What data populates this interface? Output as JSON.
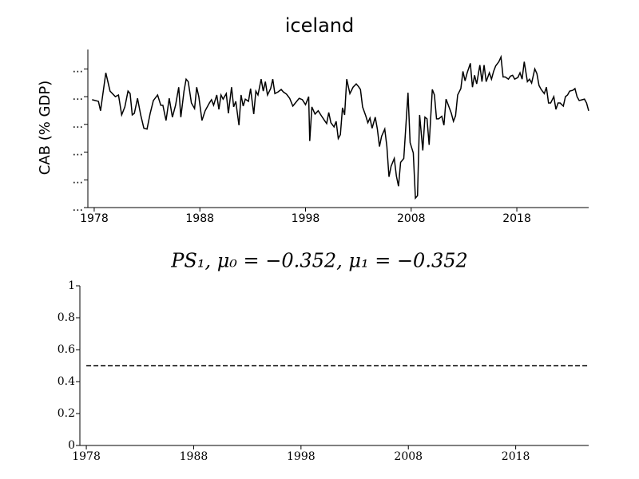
{
  "chart_data": [
    {
      "type": "line",
      "title": "iceland",
      "ylabel": "CAB (% GDP)",
      "xlim": [
        1977.4,
        2024.8
      ],
      "xticks": [
        1978,
        1988,
        1998,
        2008,
        2018
      ],
      "ylim": [
        -40,
        17
      ],
      "yticks": [
        {
          "value": 10,
          "label": "..."
        },
        {
          "value": 0,
          "label": "..."
        },
        {
          "value": -10,
          "label": "..."
        },
        {
          "value": -20,
          "label": "..."
        },
        {
          "value": -30,
          "label": "..."
        },
        {
          "value": -40,
          "label": "..."
        }
      ],
      "series": [
        {
          "color": "#000000",
          "linestyle": "solid",
          "x": [
            1977.8,
            1978.4,
            1978.6,
            1979.1,
            1979.5,
            1980.0,
            1980.3,
            1980.6,
            1980.9,
            1981.2,
            1981.4,
            1981.6,
            1981.8,
            1982.1,
            1982.4,
            1982.7,
            1983.0,
            1983.3,
            1983.6,
            1984.0,
            1984.3,
            1984.5,
            1984.8,
            1985.1,
            1985.4,
            1985.7,
            1986.0,
            1986.2,
            1986.5,
            1986.7,
            1986.9,
            1987.2,
            1987.5,
            1987.7,
            1987.9,
            1988.2,
            1988.5,
            1988.9,
            1989.1,
            1989.3,
            1989.6,
            1989.8,
            1990.0,
            1990.2,
            1990.5,
            1990.7,
            1991.0,
            1991.2,
            1991.4,
            1991.7,
            1991.9,
            1992.1,
            1992.3,
            1992.6,
            1992.8,
            1993.1,
            1993.3,
            1993.5,
            1993.8,
            1994.0,
            1994.2,
            1994.4,
            1994.7,
            1994.9,
            1995.1,
            1995.4,
            1995.7,
            1995.9,
            1996.2,
            1996.5,
            1996.8,
            1997.1,
            1997.4,
            1997.7,
            1998.0,
            1998.3,
            1998.4,
            1998.6,
            1998.9,
            1999.2,
            1999.5,
            1999.8,
            2000.0,
            2000.2,
            2000.4,
            2000.7,
            2000.9,
            2001.1,
            2001.3,
            2001.5,
            2001.7,
            2001.9,
            2002.2,
            2002.5,
            2002.8,
            2003.0,
            2003.2,
            2003.4,
            2003.7,
            2003.9,
            2004.1,
            2004.3,
            2004.6,
            2004.8,
            2005.0,
            2005.2,
            2005.5,
            2005.7,
            2005.9,
            2006.1,
            2006.4,
            2006.6,
            2006.8,
            2007.0,
            2007.3,
            2007.7,
            2007.9,
            2008.2,
            2008.4,
            2008.6,
            2008.8,
            2009.1,
            2009.3,
            2009.5,
            2009.7,
            2010.0,
            2010.2,
            2010.4,
            2010.6,
            2010.9,
            2011.1,
            2011.3,
            2011.5,
            2011.8,
            2012.0,
            2012.2,
            2012.4,
            2012.7,
            2012.9,
            2013.1,
            2013.3,
            2013.6,
            2013.8,
            2014.0,
            2014.2,
            2014.5,
            2014.7,
            2014.9,
            2015.1,
            2015.4,
            2015.6,
            2015.8,
            2016.0,
            2016.3,
            2016.5,
            2016.7,
            2016.9,
            2017.2,
            2017.4,
            2017.6,
            2017.8,
            2018.1,
            2018.3,
            2018.5,
            2018.7,
            2019.0,
            2019.2,
            2019.4,
            2019.7,
            2019.9,
            2020.1,
            2020.3,
            2020.6,
            2020.8,
            2021.0,
            2021.2,
            2021.5,
            2021.7,
            2021.9,
            2022.1,
            2022.4,
            2022.6,
            2022.8,
            2023.0,
            2023.3,
            2023.5,
            2023.7,
            2023.9,
            2024.2,
            2024.4,
            2024.6,
            2024.8
          ],
          "values": [
            -1.1,
            -1.7,
            -5.1,
            8.6,
            2.0,
            0,
            0.6,
            -6.6,
            -3.7,
            2.0,
            1.1,
            -6.6,
            -6.0,
            -0.6,
            -6.6,
            -11.4,
            -11.7,
            -6.0,
            -1.4,
            0.6,
            -3.1,
            -3.1,
            -8.6,
            -0.6,
            -7.4,
            -3.1,
            3.4,
            -7.4,
            2.0,
            6.3,
            5.4,
            -2.3,
            -4.3,
            3.4,
            0,
            -8.6,
            -5.1,
            -2.3,
            -1.1,
            -3.1,
            0.6,
            -4.6,
            0.6,
            -0.9,
            1.1,
            -6.0,
            3.4,
            -3.7,
            -1.7,
            -10.3,
            0.6,
            -3.4,
            -0.9,
            -1.7,
            2.9,
            -6.3,
            2.0,
            0.6,
            6.3,
            2.0,
            5.4,
            0.6,
            2.9,
            6.3,
            1.1,
            1.7,
            2.6,
            1.7,
            0.9,
            -0.6,
            -3.4,
            -2.0,
            -0.6,
            -1.1,
            -2.9,
            0,
            -16.0,
            -3.7,
            -6.3,
            -5.1,
            -6.9,
            -8.6,
            -9.7,
            -5.7,
            -9.4,
            -10.9,
            -8.9,
            -15.1,
            -13.7,
            -4.0,
            -6.6,
            6.3,
            1.1,
            3.4,
            4.6,
            3.7,
            2.6,
            -3.7,
            -6.9,
            -9.4,
            -7.7,
            -11.4,
            -7.4,
            -11.7,
            -18.0,
            -14.3,
            -11.7,
            -18.0,
            -28.9,
            -25.1,
            -22.3,
            -28.6,
            -32.3,
            -23.7,
            -22.3,
            1.4,
            -16.6,
            -20.3,
            -36.6,
            -35.7,
            -6.6,
            -19.4,
            -7.4,
            -8.0,
            -17.4,
            2.6,
            0.6,
            -8.0,
            -8.0,
            -7.1,
            -10.3,
            -0.9,
            -2.9,
            -6.0,
            -8.9,
            -6.9,
            0.6,
            2.9,
            9.1,
            5.7,
            8.6,
            12.0,
            3.4,
            7.7,
            4.6,
            11.4,
            5.4,
            11.4,
            5.4,
            8.6,
            6.3,
            9.1,
            11.1,
            12.6,
            14.3,
            7.1,
            7.1,
            6.3,
            7.4,
            7.7,
            6.3,
            6.9,
            8.6,
            6.3,
            12.6,
            5.4,
            6.3,
            4.9,
            10.0,
            8.3,
            4.0,
            2.6,
            1.1,
            3.4,
            -2.3,
            -2.3,
            0,
            -4.6,
            -2.3,
            -2.3,
            -3.4,
            0,
            0.6,
            2.0,
            2.3,
            2.9,
            0,
            -1.4,
            -1.1,
            -0.9,
            -2.3,
            -5.1
          ]
        }
      ]
    },
    {
      "type": "line",
      "title": "PS₁, μ₀ = −0.352, μ₁ = −0.352",
      "xlim": [
        1977.4,
        2024.8
      ],
      "xticks": [
        1978,
        1988,
        1998,
        2008,
        2018
      ],
      "ylim": [
        0,
        1
      ],
      "yticks": [
        0,
        0.2,
        0.4,
        0.6,
        0.8,
        1
      ],
      "series": [
        {
          "color": "#000000",
          "linestyle": "dashed",
          "x": [
            1978,
            2024.8
          ],
          "values": [
            0.5,
            0.5
          ]
        }
      ]
    }
  ]
}
